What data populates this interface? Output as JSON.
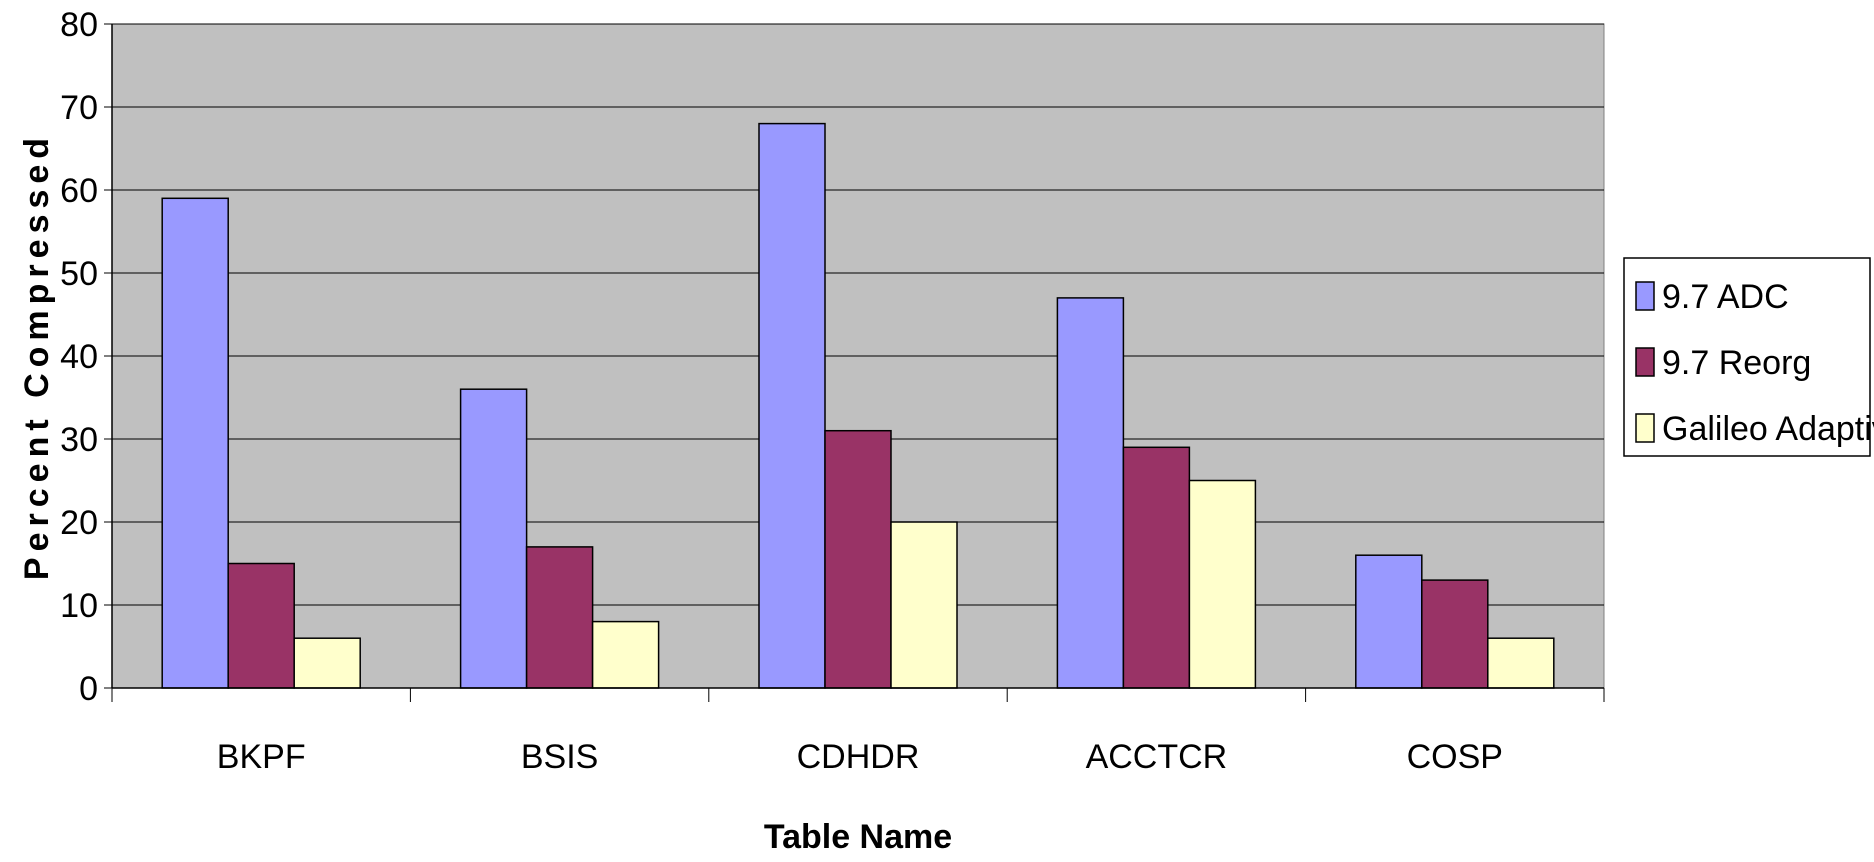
{
  "chart_data": {
    "type": "bar",
    "title": "",
    "xlabel": "Table Name",
    "ylabel": "Percent Compressed",
    "categories": [
      "BKPF",
      "BSIS",
      "CDHDR",
      "ACCTCR",
      "COSP"
    ],
    "series": [
      {
        "name": "9.7 ADC",
        "color": "#9999ff",
        "values": [
          59,
          36,
          68,
          47,
          16
        ]
      },
      {
        "name": "9.7 Reorg",
        "color": "#993366",
        "values": [
          15,
          17,
          31,
          29,
          13
        ]
      },
      {
        "name": "Galileo Adaptive",
        "color": "#ffffcc",
        "values": [
          6,
          8,
          20,
          25,
          6
        ]
      }
    ],
    "ylim": [
      0,
      80
    ],
    "yticks": [
      0,
      10,
      20,
      30,
      40,
      50,
      60,
      70,
      80
    ],
    "grid": true,
    "plot_background": "#c0c0c0",
    "legend_position": "right"
  }
}
